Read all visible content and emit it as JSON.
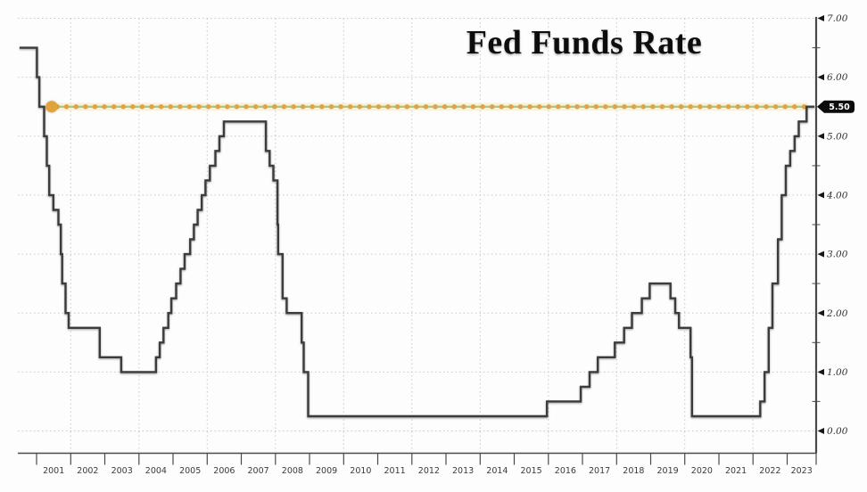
{
  "title": "Fed Funds Rate",
  "colors": {
    "background": "#fdfdfd",
    "line": "#3c3c3c",
    "grid": "#c8c8c8",
    "axis": "#4a4a4a",
    "ref_orange": "#e0a348",
    "ref_green": "#a9bf8d",
    "ref_glow": "#f6ecb4",
    "ref_marker": "#e2a33d",
    "badge_bg": "#0c0c0c",
    "badge_text": "#ffffff"
  },
  "chart_data": {
    "type": "line",
    "step": true,
    "title": "Fed Funds Rate",
    "x_axis": {
      "range": [
        2000.45,
        2023.85
      ],
      "tick_years": [
        2001,
        2002,
        2003,
        2004,
        2005,
        2006,
        2007,
        2008,
        2009,
        2010,
        2011,
        2012,
        2013,
        2014,
        2015,
        2016,
        2017,
        2018,
        2019,
        2020,
        2021,
        2022,
        2023
      ],
      "labels": [
        "2001",
        "2002",
        "2003",
        "2004",
        "2005",
        "2006",
        "2007",
        "2008",
        "2009",
        "2010",
        "2011",
        "2012",
        "2013",
        "2014",
        "2015",
        "2016",
        "2017",
        "2018",
        "2019",
        "2020",
        "2021",
        "2022",
        "2023"
      ]
    },
    "y_axis": {
      "min": 0,
      "max": 7,
      "major_step": 1,
      "minor_step": 0.5,
      "side": "right",
      "labels": [
        "0.00",
        "1.00",
        "2.00",
        "3.00",
        "4.00",
        "5.00",
        "6.00",
        "7.00"
      ]
    },
    "grid": {
      "horizontal": [
        0,
        1,
        2,
        3,
        4,
        5,
        6,
        7
      ],
      "vertical_years": [
        2002,
        2004,
        2006,
        2008,
        2010,
        2012,
        2014,
        2016,
        2018,
        2020,
        2022
      ]
    },
    "reference_line": {
      "value": 5.5,
      "label": "5.50",
      "style": "dotted",
      "start_marker": true
    },
    "current_value": 5.5,
    "series": [
      {
        "name": "Fed Funds Rate",
        "points": [
          [
            2000.5,
            6.5
          ],
          [
            2001.01,
            6.0
          ],
          [
            2001.08,
            5.5
          ],
          [
            2001.22,
            5.0
          ],
          [
            2001.3,
            4.5
          ],
          [
            2001.37,
            4.0
          ],
          [
            2001.49,
            3.75
          ],
          [
            2001.64,
            3.5
          ],
          [
            2001.71,
            3.0
          ],
          [
            2001.75,
            2.5
          ],
          [
            2001.85,
            2.0
          ],
          [
            2001.94,
            1.75
          ],
          [
            2002.85,
            1.25
          ],
          [
            2003.48,
            1.0
          ],
          [
            2004.5,
            1.25
          ],
          [
            2004.61,
            1.5
          ],
          [
            2004.72,
            1.75
          ],
          [
            2004.86,
            2.0
          ],
          [
            2004.95,
            2.25
          ],
          [
            2005.09,
            2.5
          ],
          [
            2005.22,
            2.75
          ],
          [
            2005.34,
            3.0
          ],
          [
            2005.5,
            3.25
          ],
          [
            2005.61,
            3.5
          ],
          [
            2005.72,
            3.75
          ],
          [
            2005.84,
            4.0
          ],
          [
            2005.95,
            4.25
          ],
          [
            2006.08,
            4.5
          ],
          [
            2006.24,
            4.75
          ],
          [
            2006.36,
            5.0
          ],
          [
            2006.49,
            5.25
          ],
          [
            2007.72,
            4.75
          ],
          [
            2007.83,
            4.5
          ],
          [
            2007.94,
            4.25
          ],
          [
            2008.06,
            3.5
          ],
          [
            2008.08,
            3.0
          ],
          [
            2008.21,
            2.25
          ],
          [
            2008.33,
            2.0
          ],
          [
            2008.77,
            1.5
          ],
          [
            2008.83,
            1.0
          ],
          [
            2008.96,
            0.25
          ],
          [
            2015.96,
            0.5
          ],
          [
            2016.95,
            0.75
          ],
          [
            2017.21,
            1.0
          ],
          [
            2017.45,
            1.25
          ],
          [
            2017.95,
            1.5
          ],
          [
            2018.22,
            1.75
          ],
          [
            2018.45,
            2.0
          ],
          [
            2018.74,
            2.25
          ],
          [
            2018.97,
            2.5
          ],
          [
            2019.58,
            2.25
          ],
          [
            2019.72,
            2.0
          ],
          [
            2019.83,
            1.75
          ],
          [
            2020.17,
            1.25
          ],
          [
            2020.21,
            0.25
          ],
          [
            2022.21,
            0.5
          ],
          [
            2022.34,
            1.0
          ],
          [
            2022.46,
            1.75
          ],
          [
            2022.57,
            2.5
          ],
          [
            2022.73,
            3.25
          ],
          [
            2022.84,
            4.0
          ],
          [
            2022.96,
            4.5
          ],
          [
            2023.09,
            4.75
          ],
          [
            2023.22,
            5.0
          ],
          [
            2023.34,
            5.25
          ],
          [
            2023.57,
            5.5
          ],
          [
            2023.8,
            5.5
          ]
        ]
      }
    ]
  }
}
